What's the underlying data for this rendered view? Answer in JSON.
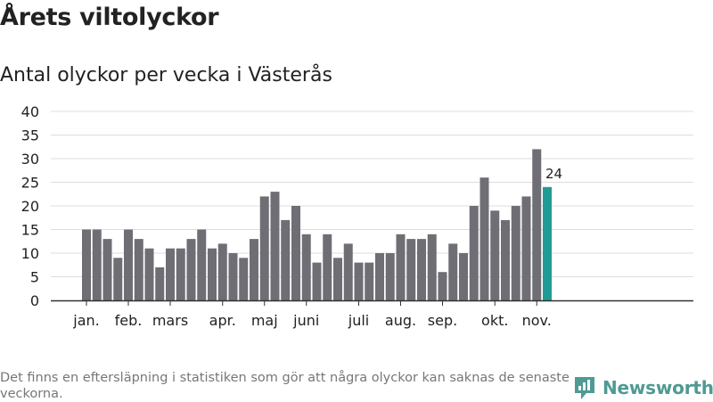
{
  "title": "Årets viltolyckor",
  "subtitle": "Antal olyckor per vecka i Västerås",
  "footnote": "Det finns en eftersläpning i statistiken som gör att några olyckor kan saknas de senaste veckorna.",
  "brand": {
    "name": "Newsworthy",
    "icon": "newsworthy-logo-icon"
  },
  "colors": {
    "bar": "#6f6e75",
    "highlight": "#1f9c95",
    "grid": "#dddddd",
    "axis": "#333333",
    "text": "#222222"
  },
  "chart_data": {
    "type": "bar",
    "y_ticks": [
      0,
      5,
      10,
      15,
      20,
      25,
      30,
      35,
      40
    ],
    "ylim": [
      0,
      40
    ],
    "grid": true,
    "x_tick_labels": [
      "jan.",
      "feb.",
      "mars",
      "apr.",
      "maj",
      "juni",
      "juli",
      "aug.",
      "sep.",
      "okt.",
      "nov."
    ],
    "month_start_week": [
      1,
      5,
      9,
      14,
      18,
      22,
      27,
      31,
      35,
      40,
      44
    ],
    "weeks": [
      1,
      2,
      3,
      4,
      5,
      6,
      7,
      8,
      9,
      10,
      11,
      12,
      13,
      14,
      15,
      16,
      17,
      18,
      19,
      20,
      21,
      22,
      23,
      24,
      25,
      26,
      27,
      28,
      29,
      30,
      31,
      32,
      33,
      34,
      35,
      36,
      37,
      38,
      39,
      40,
      41,
      42,
      43,
      44,
      45
    ],
    "values": [
      15,
      15,
      13,
      9,
      15,
      13,
      11,
      7,
      11,
      11,
      13,
      15,
      11,
      12,
      10,
      9,
      13,
      22,
      23,
      17,
      20,
      14,
      8,
      14,
      9,
      12,
      8,
      8,
      10,
      10,
      14,
      13,
      13,
      14,
      6,
      12,
      10,
      20,
      26,
      19,
      17,
      20,
      22,
      32,
      24
    ],
    "highlight_label": "24"
  }
}
